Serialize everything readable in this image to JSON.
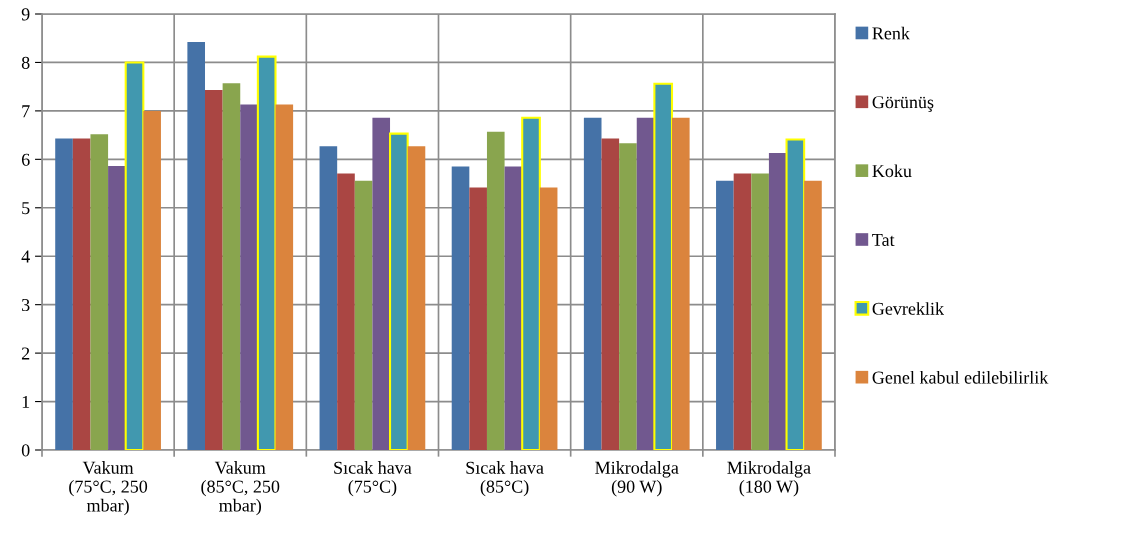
{
  "chart_data": {
    "type": "bar",
    "categories": [
      "Vakum\n(75°C, 250\nmbar)",
      "Vakum\n(85°C, 250\nmbar)",
      "Sıcak hava\n(75°C)",
      "Sıcak hava\n(85°C)",
      "Mikrodalga\n(90 W)",
      "Mikrodalga\n(180 W)"
    ],
    "series": [
      {
        "name": "Renk",
        "color": "#4572a7",
        "values": [
          6.43,
          8.42,
          6.27,
          5.85,
          6.86,
          5.56
        ]
      },
      {
        "name": "Görünüş",
        "color": "#aa4643",
        "values": [
          6.43,
          7.43,
          5.71,
          5.42,
          6.43,
          5.71
        ]
      },
      {
        "name": "Koku",
        "color": "#89a54e",
        "values": [
          6.52,
          7.57,
          5.56,
          6.57,
          6.33,
          5.71
        ]
      },
      {
        "name": "Tat",
        "color": "#71588f",
        "values": [
          5.86,
          7.13,
          6.86,
          5.85,
          6.86,
          6.13
        ]
      },
      {
        "name": "Gevreklik",
        "color": "#4198af",
        "values": [
          8.0,
          8.12,
          6.53,
          6.86,
          7.56,
          6.41
        ]
      },
      {
        "name": "Genel kabul edilebilirlik",
        "color": "#db843d",
        "values": [
          7.0,
          7.13,
          6.27,
          5.42,
          6.86,
          5.56
        ]
      }
    ],
    "ylim": [
      0,
      9
    ],
    "yticks": [
      0,
      1,
      2,
      3,
      4,
      5,
      6,
      7,
      8,
      9
    ],
    "grid": true,
    "legend": "right"
  }
}
